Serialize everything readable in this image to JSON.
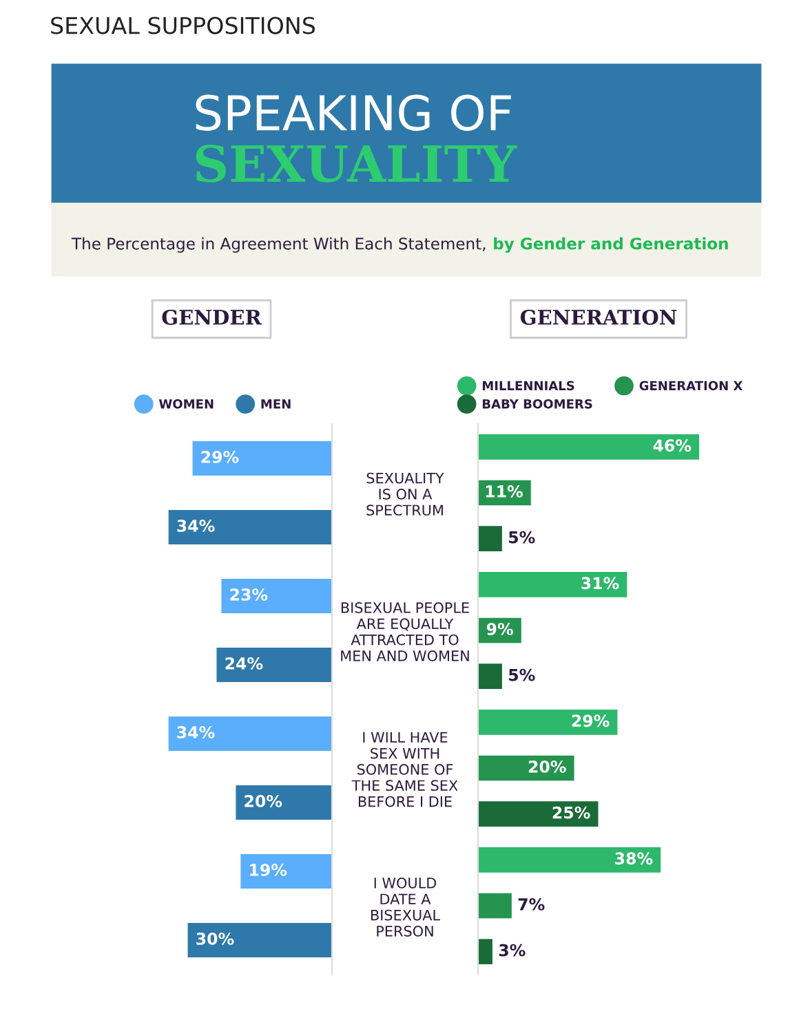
{
  "chart_data": [
    {
      "type": "bar",
      "orientation": "horizontal",
      "title": "GENDER",
      "annotations": [
        "SEXUAL SUPPOSITIONS",
        "SPEAKING OF",
        "SEXUALITY",
        "The Percentage in Agreement With Each Statement,",
        "by Gender and Generation"
      ],
      "categories": [
        "SEXUALITY\nIS ON A\nSPECTRUM",
        "BISEXUAL PEOPLE\nARE EQUALLY\nATTRACTED TO\nMEN AND WOMEN",
        "I WILL HAVE\nSEX WITH\nSOMEONE OF\nTHE SAME SEX\nBEFORE I DIE",
        "I WOULD\nDATE A\nBISEXUAL\nPERSON"
      ],
      "series": [
        {
          "name": "WOMEN",
          "color": "#5aaefc",
          "values": [
            29,
            23,
            34,
            19
          ],
          "value_labels": [
            "29%",
            "23%",
            "34%",
            "19%"
          ]
        },
        {
          "name": "MEN",
          "color": "#2e79a9",
          "values": [
            34,
            24,
            20,
            30
          ],
          "value_labels": [
            "34%",
            "24%",
            "20%",
            "30%"
          ]
        }
      ],
      "tick_labels": "y",
      "legend": "top",
      "grid": false
    },
    {
      "type": "bar",
      "orientation": "horizontal",
      "title": "GENERATION",
      "categories": [
        null,
        null,
        null,
        null
      ],
      "series": [
        {
          "name": "MILLENNIALS",
          "color": "#2eb86b",
          "values": [
            46,
            31,
            29,
            38
          ],
          "value_labels": [
            "46%",
            "31%",
            "29%",
            "38%"
          ]
        },
        {
          "name": "GENERATION X",
          "color": "#25944f",
          "values": [
            11,
            9,
            20,
            7
          ],
          "value_labels": [
            "11%",
            "9%",
            "20%",
            "7%"
          ]
        },
        {
          "name": "BABY BOOMERS",
          "color": "#1a6b37",
          "values": [
            5,
            5,
            25,
            3
          ],
          "value_labels": [
            "5%",
            "5%",
            "25%",
            "3%"
          ]
        }
      ],
      "tick_labels": false,
      "legend": "top",
      "grid": false
    }
  ]
}
